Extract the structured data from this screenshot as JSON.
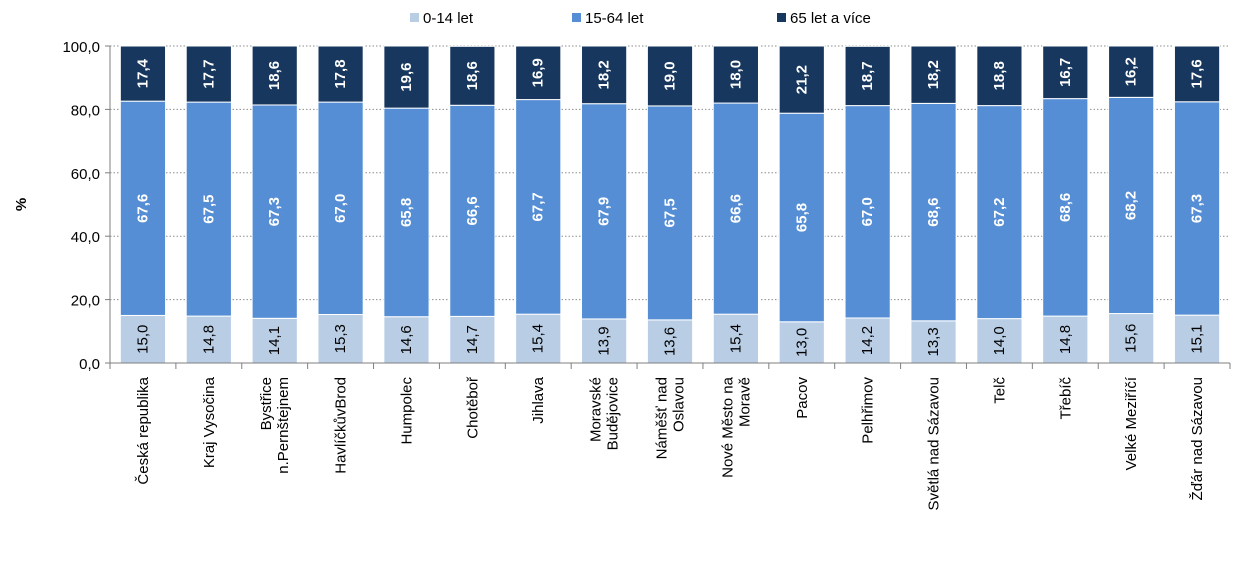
{
  "chart_data": {
    "type": "bar",
    "stacked": true,
    "title": "",
    "xlabel": "",
    "ylabel": "%",
    "ylim": [
      0,
      100
    ],
    "y_ticks": [
      "0,0",
      "20,0",
      "40,0",
      "60,0",
      "80,0",
      "100,0"
    ],
    "grid": true,
    "legend_position": "top",
    "categories": [
      [
        "Česká republika"
      ],
      [
        "Kraj Vysočina"
      ],
      [
        "Bystřice",
        "n.Pernštejnem"
      ],
      [
        "HavlíčkůvBrod"
      ],
      [
        "Humpolec"
      ],
      [
        "Chotěboř"
      ],
      [
        "Jihlava"
      ],
      [
        "Moravské",
        "Budějovice"
      ],
      [
        "Náměšť nad",
        "Oslavou"
      ],
      [
        "Nové Město na",
        "Moravě"
      ],
      [
        "Pacov"
      ],
      [
        "Pelhřimov"
      ],
      [
        "Světlá nad Sázavou"
      ],
      [
        "Telč"
      ],
      [
        "Třebíč"
      ],
      [
        "Velké Meziříčí"
      ],
      [
        "Žďár nad Sázavou"
      ]
    ],
    "series": [
      {
        "name": "0-14 let",
        "color": "#b9cde5",
        "label_color": "#000000",
        "values": [
          15.0,
          14.8,
          14.1,
          15.3,
          14.6,
          14.7,
          15.4,
          13.9,
          13.6,
          15.4,
          13.0,
          14.2,
          13.3,
          14.0,
          14.8,
          15.6,
          15.1
        ],
        "labels": [
          "15,0",
          "14,8",
          "14,1",
          "15,3",
          "14,6",
          "14,7",
          "15,4",
          "13,9",
          "13,6",
          "15,4",
          "13,0",
          "14,2",
          "13,3",
          "14,0",
          "14,8",
          "15,6",
          "15,1"
        ]
      },
      {
        "name": "15-64 let",
        "color": "#558ed5",
        "label_color": "#ffffff",
        "values": [
          67.6,
          67.5,
          67.3,
          67.0,
          65.8,
          66.6,
          67.7,
          67.9,
          67.5,
          66.6,
          65.8,
          67.0,
          68.6,
          67.2,
          68.6,
          68.2,
          67.3
        ],
        "labels": [
          "67,6",
          "67,5",
          "67,3",
          "67,0",
          "65,8",
          "66,6",
          "67,7",
          "67,9",
          "67,5",
          "66,6",
          "65,8",
          "67,0",
          "68,6",
          "67,2",
          "68,6",
          "68,2",
          "67,3"
        ]
      },
      {
        "name": "65 let a více",
        "color": "#17375e",
        "label_color": "#ffffff",
        "values": [
          17.4,
          17.7,
          18.6,
          17.8,
          19.6,
          18.6,
          16.9,
          18.2,
          19.0,
          18.0,
          21.2,
          18.7,
          18.2,
          18.8,
          16.7,
          16.2,
          17.6
        ],
        "labels": [
          "17,4",
          "17,7",
          "18,6",
          "17,8",
          "19,6",
          "18,6",
          "16,9",
          "18,2",
          "19,0",
          "18,0",
          "21,2",
          "18,7",
          "18,2",
          "18,8",
          "16,7",
          "16,2",
          "17,6"
        ]
      }
    ]
  }
}
